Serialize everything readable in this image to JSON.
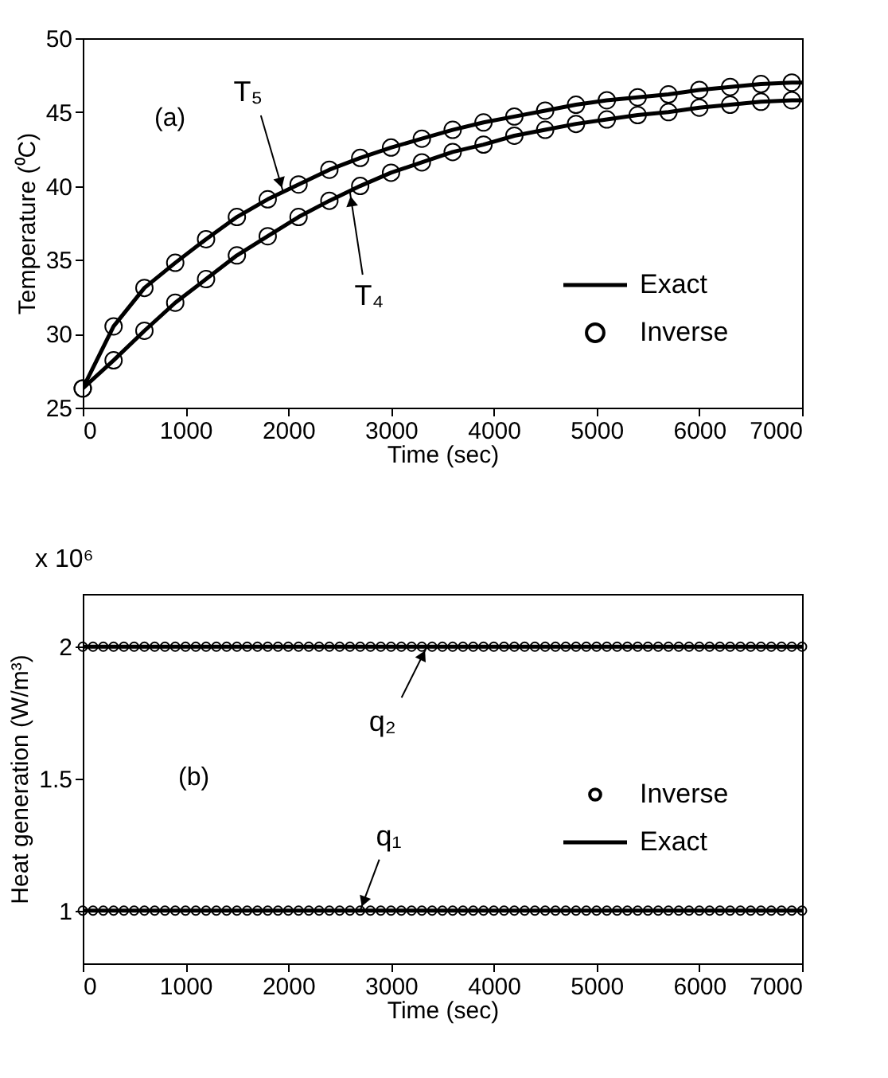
{
  "chart_data": [
    {
      "type": "line",
      "xlabel": "Time (sec)",
      "ylabel": "Temperature (⁰C)",
      "xlim": [
        0,
        7000
      ],
      "ylim": [
        25,
        50
      ],
      "xticks": [
        0,
        1000,
        2000,
        3000,
        4000,
        5000,
        6000,
        7000
      ],
      "yticks": [
        25,
        30,
        35,
        40,
        45,
        50
      ],
      "grid": false,
      "legend": "bottom right",
      "annotations": [
        "(a)",
        {
          "text": "T₅",
          "x": 1950,
          "y": 39.6
        },
        {
          "text": "T₄",
          "x": 2600,
          "y": 39.6
        }
      ],
      "series": [
        {
          "name": "Exact",
          "type": "line",
          "color": "#000000",
          "marker": "none",
          "line_style": "solid",
          "x": [
            0,
            300,
            600,
            900,
            1200,
            1500,
            1800,
            2100,
            2400,
            2700,
            3000,
            3300,
            3600,
            3900,
            4200,
            4500,
            4800,
            5100,
            5400,
            5700,
            6000,
            6300,
            6600,
            6900,
            7000
          ],
          "values": [
            26.3,
            30.5,
            33.1,
            34.8,
            36.4,
            37.9,
            39.1,
            40.1,
            41.1,
            41.9,
            42.6,
            43.2,
            43.8,
            44.3,
            44.7,
            45.1,
            45.5,
            45.8,
            46.0,
            46.2,
            46.5,
            46.7,
            46.9,
            47.0,
            47.0
          ]
        },
        {
          "name": "Exact",
          "type": "line",
          "color": "#000000",
          "marker": "none",
          "line_style": "solid",
          "x": [
            0,
            300,
            600,
            900,
            1200,
            1500,
            1800,
            2100,
            2400,
            2700,
            3000,
            3300,
            3600,
            3900,
            4200,
            4500,
            4800,
            5100,
            5400,
            5700,
            6000,
            6300,
            6600,
            6900,
            7000
          ],
          "values": [
            26.3,
            28.2,
            30.2,
            32.1,
            33.7,
            35.3,
            36.6,
            37.9,
            39.0,
            40.0,
            40.9,
            41.6,
            42.3,
            42.8,
            43.4,
            43.8,
            44.2,
            44.5,
            44.8,
            45.0,
            45.3,
            45.5,
            45.7,
            45.8,
            45.8
          ]
        },
        {
          "name": "Inverse",
          "type": "scatter",
          "color": "#000000",
          "marker": "circle",
          "x": [
            0,
            300,
            600,
            900,
            1200,
            1500,
            1800,
            2100,
            2400,
            2700,
            3000,
            3300,
            3600,
            3900,
            4200,
            4500,
            4800,
            5100,
            5400,
            5700,
            6000,
            6300,
            6600,
            6900
          ],
          "values": [
            26.3,
            30.5,
            33.1,
            34.8,
            36.4,
            37.9,
            39.1,
            40.1,
            41.1,
            41.9,
            42.6,
            43.2,
            43.8,
            44.3,
            44.7,
            45.1,
            45.5,
            45.8,
            46.0,
            46.2,
            46.5,
            46.7,
            46.9,
            47.0
          ]
        },
        {
          "name": "Inverse",
          "type": "scatter",
          "color": "#000000",
          "marker": "circle",
          "x": [
            0,
            300,
            600,
            900,
            1200,
            1500,
            1800,
            2100,
            2400,
            2700,
            3000,
            3300,
            3600,
            3900,
            4200,
            4500,
            4800,
            5100,
            5400,
            5700,
            6000,
            6300,
            6600,
            6900
          ],
          "values": [
            26.3,
            28.2,
            30.2,
            32.1,
            33.7,
            35.3,
            36.6,
            37.9,
            39.0,
            40.0,
            40.9,
            41.6,
            42.3,
            42.8,
            43.4,
            43.8,
            44.2,
            44.5,
            44.8,
            45.0,
            45.3,
            45.5,
            45.7,
            45.8
          ]
        }
      ]
    },
    {
      "type": "line",
      "xlabel": "Time (sec)",
      "ylabel": "Heat generation (W/m³)",
      "xlim": [
        0,
        7000
      ],
      "ylim": [
        0.8,
        2.2
      ],
      "xticks": [
        0,
        1000,
        2000,
        3000,
        4000,
        5000,
        6000,
        7000
      ],
      "yticks": [
        1,
        1.5,
        2
      ],
      "grid": false,
      "legend": "right",
      "annotations": [
        "x 10⁶",
        "(b)",
        {
          "text": "q₂",
          "x": 3350,
          "y": 2
        },
        {
          "text": "q₁",
          "x": 2700,
          "y": 1
        }
      ],
      "series": [
        {
          "name": "Inverse",
          "type": "scatter",
          "color": "#000000",
          "marker": "circle",
          "x": [
            0,
            100,
            200,
            300,
            400,
            500,
            600,
            700,
            800,
            900,
            1000,
            1100,
            1200,
            1300,
            1400,
            1500,
            1600,
            1700,
            1800,
            1900,
            2000,
            2100,
            2200,
            2300,
            2400,
            2500,
            2600,
            2700,
            2800,
            2900,
            3000,
            3100,
            3200,
            3300,
            3400,
            3500,
            3600,
            3700,
            3800,
            3900,
            4000,
            4100,
            4200,
            4300,
            4400,
            4500,
            4600,
            4700,
            4800,
            4900,
            5000,
            5100,
            5200,
            5300,
            5400,
            5500,
            5600,
            5700,
            5800,
            5900,
            6000,
            6100,
            6200,
            6300,
            6400,
            6500,
            6600,
            6700,
            6800,
            6900,
            7000
          ],
          "values": [
            2,
            2,
            2,
            2,
            2,
            2,
            2,
            2,
            2,
            2,
            2,
            2,
            2,
            2,
            2,
            2,
            2,
            2,
            2,
            2,
            2,
            2,
            2,
            2,
            2,
            2,
            2,
            2,
            2,
            2,
            2,
            2,
            2,
            2,
            2,
            2,
            2,
            2,
            2,
            2,
            2,
            2,
            2,
            2,
            2,
            2,
            2,
            2,
            2,
            2,
            2,
            2,
            2,
            2,
            2,
            2,
            2,
            2,
            2,
            2,
            2,
            2,
            2,
            2,
            2,
            2,
            2,
            2,
            2,
            2,
            2
          ]
        },
        {
          "name": "Inverse",
          "type": "scatter",
          "color": "#000000",
          "marker": "circle",
          "x": [
            0,
            100,
            200,
            300,
            400,
            500,
            600,
            700,
            800,
            900,
            1000,
            1100,
            1200,
            1300,
            1400,
            1500,
            1600,
            1700,
            1800,
            1900,
            2000,
            2100,
            2200,
            2300,
            2400,
            2500,
            2600,
            2700,
            2800,
            2900,
            3000,
            3100,
            3200,
            3300,
            3400,
            3500,
            3600,
            3700,
            3800,
            3900,
            4000,
            4100,
            4200,
            4300,
            4400,
            4500,
            4600,
            4700,
            4800,
            4900,
            5000,
            5100,
            5200,
            5300,
            5400,
            5500,
            5600,
            5700,
            5800,
            5900,
            6000,
            6100,
            6200,
            6300,
            6400,
            6500,
            6600,
            6700,
            6800,
            6900,
            7000
          ],
          "values": [
            1,
            1,
            1,
            1,
            1,
            1,
            1,
            1,
            1,
            1,
            1,
            1,
            1,
            1,
            1,
            1,
            1,
            1,
            1,
            1,
            1,
            1,
            1,
            1,
            1,
            1,
            1,
            1,
            1,
            1,
            1,
            1,
            1,
            1,
            1,
            1,
            1,
            1,
            1,
            1,
            1,
            1,
            1,
            1,
            1,
            1,
            1,
            1,
            1,
            1,
            1,
            1,
            1,
            1,
            1,
            1,
            1,
            1,
            1,
            1,
            1,
            1,
            1,
            1,
            1,
            1,
            1,
            1,
            1,
            1,
            1
          ]
        },
        {
          "name": "Exact",
          "type": "line",
          "color": "#000000",
          "marker": "none",
          "line_style": "solid",
          "x": [
            0,
            7000
          ],
          "values": [
            2,
            2
          ]
        },
        {
          "name": "Exact",
          "type": "line",
          "color": "#000000",
          "marker": "none",
          "line_style": "solid",
          "x": [
            0,
            7000
          ],
          "values": [
            1,
            1
          ]
        }
      ]
    }
  ]
}
